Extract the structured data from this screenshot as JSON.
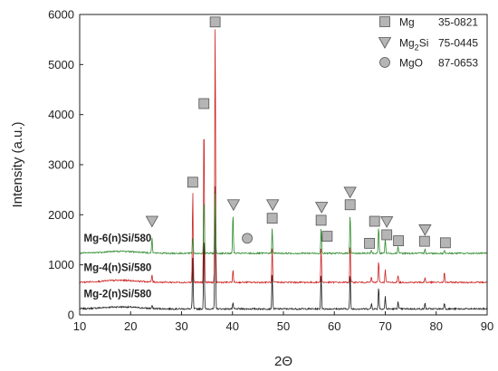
{
  "chart_data": {
    "type": "line",
    "xlabel": "2Θ",
    "ylabel": "Intensity (a.u.)",
    "xlim": [
      10,
      90
    ],
    "ylim": [
      0,
      6000
    ],
    "xticks": [
      "10",
      "20",
      "30",
      "40",
      "50",
      "60",
      "70",
      "80",
      "90"
    ],
    "yticks": [
      "0",
      "1000",
      "2000",
      "3000",
      "4000",
      "5000",
      "6000"
    ],
    "grid": false,
    "legend_position": "top-right",
    "legend": [
      {
        "marker": "square",
        "phase": "Mg",
        "phase_sub": "",
        "phase_rest": "",
        "card": "35-0821"
      },
      {
        "marker": "triangle-down",
        "phase": "Mg",
        "phase_sub": "2",
        "phase_rest": "Si",
        "card": "75-0445"
      },
      {
        "marker": "circle",
        "phase": "MgO",
        "phase_sub": "",
        "phase_rest": "",
        "card": "87-0653"
      }
    ],
    "series": [
      {
        "name": "Mg-2(n)Si/580",
        "color": "#1a1a1a",
        "baseline": 120,
        "peaks": [
          {
            "x": 24.2,
            "h": 60
          },
          {
            "x": 32.2,
            "h": 1050
          },
          {
            "x": 34.4,
            "h": 1550
          },
          {
            "x": 36.6,
            "h": 2550
          },
          {
            "x": 40.1,
            "h": 110
          },
          {
            "x": 47.8,
            "h": 700
          },
          {
            "x": 57.4,
            "h": 700
          },
          {
            "x": 63.1,
            "h": 700
          },
          {
            "x": 67.3,
            "h": 110
          },
          {
            "x": 68.7,
            "h": 450
          },
          {
            "x": 70.0,
            "h": 250
          },
          {
            "x": 72.5,
            "h": 150
          },
          {
            "x": 77.8,
            "h": 110
          },
          {
            "x": 81.6,
            "h": 130
          }
        ]
      },
      {
        "name": "Mg-4(n)Si/580",
        "color": "#cc2222",
        "baseline": 650,
        "peaks": [
          {
            "x": 24.2,
            "h": 150
          },
          {
            "x": 32.2,
            "h": 1850
          },
          {
            "x": 34.4,
            "h": 3350
          },
          {
            "x": 36.6,
            "h": 5250
          },
          {
            "x": 40.1,
            "h": 250
          },
          {
            "x": 47.8,
            "h": 700
          },
          {
            "x": 57.4,
            "h": 700
          },
          {
            "x": 63.1,
            "h": 750
          },
          {
            "x": 67.3,
            "h": 110
          },
          {
            "x": 68.7,
            "h": 450
          },
          {
            "x": 70.0,
            "h": 250
          },
          {
            "x": 72.5,
            "h": 150
          },
          {
            "x": 77.8,
            "h": 100
          },
          {
            "x": 81.6,
            "h": 200
          }
        ]
      },
      {
        "name": "Mg-6(n)Si/580",
        "color": "#2e8b2e",
        "baseline": 1230,
        "peaks": [
          {
            "x": 24.2,
            "h": 300
          },
          {
            "x": 32.2,
            "h": 320
          },
          {
            "x": 34.4,
            "h": 1150
          },
          {
            "x": 36.6,
            "h": 1250
          },
          {
            "x": 40.1,
            "h": 800
          },
          {
            "x": 47.8,
            "h": 500
          },
          {
            "x": 57.4,
            "h": 500
          },
          {
            "x": 63.1,
            "h": 800
          },
          {
            "x": 67.3,
            "h": 60
          },
          {
            "x": 68.7,
            "h": 550
          },
          {
            "x": 70.0,
            "h": 300
          },
          {
            "x": 72.5,
            "h": 150
          },
          {
            "x": 77.8,
            "h": 100
          },
          {
            "x": 81.6,
            "h": 60
          }
        ]
      }
    ],
    "annotations": [
      {
        "marker": "square",
        "x": 32.2,
        "y": 2650
      },
      {
        "marker": "square",
        "x": 34.4,
        "y": 4220
      },
      {
        "marker": "square",
        "x": 36.6,
        "y": 5850
      },
      {
        "marker": "square",
        "x": 47.8,
        "y": 1930
      },
      {
        "marker": "square",
        "x": 57.4,
        "y": 1890
      },
      {
        "marker": "square",
        "x": 58.6,
        "y": 1570
      },
      {
        "marker": "square",
        "x": 63.1,
        "y": 2200
      },
      {
        "marker": "square",
        "x": 66.9,
        "y": 1430
      },
      {
        "marker": "square",
        "x": 67.9,
        "y": 1870
      },
      {
        "marker": "square",
        "x": 70.3,
        "y": 1600
      },
      {
        "marker": "square",
        "x": 72.6,
        "y": 1480
      },
      {
        "marker": "square",
        "x": 77.7,
        "y": 1470
      },
      {
        "marker": "square",
        "x": 81.8,
        "y": 1440
      },
      {
        "marker": "triangle-down",
        "x": 24.2,
        "y": 1870
      },
      {
        "marker": "triangle-down",
        "x": 40.2,
        "y": 2200
      },
      {
        "marker": "triangle-down",
        "x": 47.9,
        "y": 2200
      },
      {
        "marker": "triangle-down",
        "x": 57.5,
        "y": 2150
      },
      {
        "marker": "triangle-down",
        "x": 63.1,
        "y": 2450
      },
      {
        "marker": "triangle-down",
        "x": 70.3,
        "y": 1860
      },
      {
        "marker": "triangle-down",
        "x": 77.8,
        "y": 1700
      },
      {
        "marker": "circle",
        "x": 42.9,
        "y": 1530
      }
    ]
  }
}
